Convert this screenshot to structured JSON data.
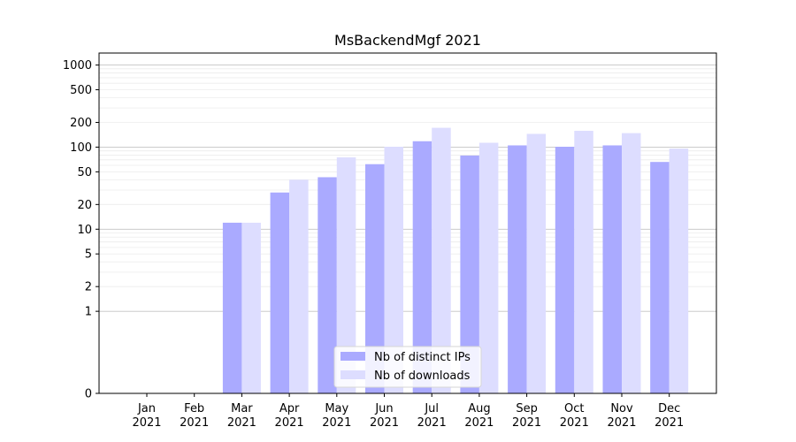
{
  "chart_data": {
    "type": "bar",
    "title": "MsBackendMgf 2021",
    "xlabel": "",
    "ylabel": "",
    "categories": [
      [
        "Jan",
        "2021"
      ],
      [
        "Feb",
        "2021"
      ],
      [
        "Mar",
        "2021"
      ],
      [
        "Apr",
        "2021"
      ],
      [
        "May",
        "2021"
      ],
      [
        "Jun",
        "2021"
      ],
      [
        "Jul",
        "2021"
      ],
      [
        "Aug",
        "2021"
      ],
      [
        "Sep",
        "2021"
      ],
      [
        "Oct",
        "2021"
      ],
      [
        "Nov",
        "2021"
      ],
      [
        "Dec",
        "2021"
      ]
    ],
    "series": [
      {
        "name": "Nb of distinct IPs",
        "color": "#aaaaff",
        "values": [
          0,
          0,
          12,
          28,
          43,
          62,
          118,
          79,
          105,
          101,
          105,
          66
        ]
      },
      {
        "name": "Nb of downloads",
        "color": "#ddddff",
        "values": [
          0,
          0,
          12,
          40,
          75,
          101,
          172,
          113,
          145,
          158,
          148,
          96
        ]
      }
    ],
    "y_scale": "symlog",
    "ylim": [
      0,
      1400
    ],
    "y_ticks": [
      0,
      1,
      2,
      5,
      10,
      20,
      50,
      100,
      200,
      500,
      1000
    ],
    "grid": true,
    "legend_position": "bottom-center"
  }
}
